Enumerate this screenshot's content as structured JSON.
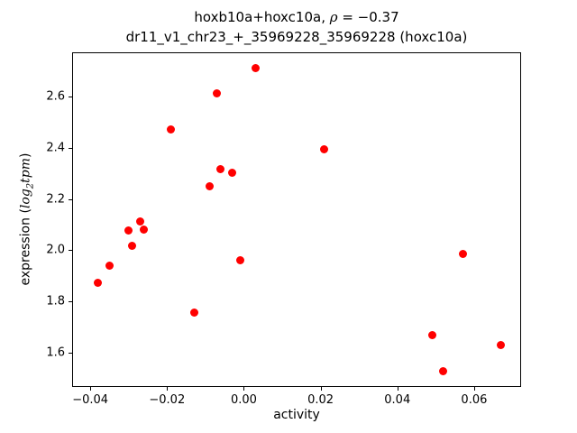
{
  "title": {
    "line1_prefix": "hoxb10a+hoxc10a, ",
    "line1_rho": "ρ",
    "line1_rest": " = −0.37",
    "line2": "dr11_v1_chr23_+_35969228_35969228 (hoxc10a)"
  },
  "axes": {
    "xlabel": "activity",
    "ylabel_prefix": "expression (",
    "ylabel_log": "log",
    "ylabel_sub": "2",
    "ylabel_tpm": "tpm",
    "ylabel_suffix": ")"
  },
  "chart_data": {
    "type": "scatter",
    "title": "hoxb10a+hoxc10a, ρ = −0.37",
    "subtitle": "dr11_v1_chr23_+_35969228_35969228 (hoxc10a)",
    "xlabel": "activity",
    "ylabel": "expression (log2 tpm)",
    "marker_color": "#ff0000",
    "grid": false,
    "legend": "none",
    "xlim": [
      -0.0445,
      0.072
    ],
    "ylim": [
      1.469,
      2.769
    ],
    "x_ticks": [
      -0.04,
      -0.02,
      0.0,
      0.02,
      0.04,
      0.06
    ],
    "x_tick_labels": [
      "−0.04",
      "−0.02",
      "0.00",
      "0.02",
      "0.04",
      "0.06"
    ],
    "y_ticks": [
      1.6,
      1.8,
      2.0,
      2.2,
      2.4,
      2.6
    ],
    "y_tick_labels": [
      "1.6",
      "1.8",
      "2.0",
      "2.2",
      "2.4",
      "2.6"
    ],
    "points": [
      [
        -0.038,
        1.871
      ],
      [
        -0.035,
        1.94
      ],
      [
        -0.03,
        2.078
      ],
      [
        -0.029,
        2.018
      ],
      [
        -0.027,
        2.112
      ],
      [
        -0.026,
        2.079
      ],
      [
        -0.019,
        2.47
      ],
      [
        -0.013,
        1.757
      ],
      [
        -0.009,
        2.248
      ],
      [
        -0.007,
        2.613
      ],
      [
        -0.006,
        2.315
      ],
      [
        -0.003,
        2.303
      ],
      [
        -0.001,
        1.96
      ],
      [
        0.003,
        2.71
      ],
      [
        0.021,
        2.394
      ],
      [
        0.049,
        1.667
      ],
      [
        0.052,
        1.528
      ],
      [
        0.057,
        1.986
      ],
      [
        0.067,
        1.63
      ]
    ]
  }
}
